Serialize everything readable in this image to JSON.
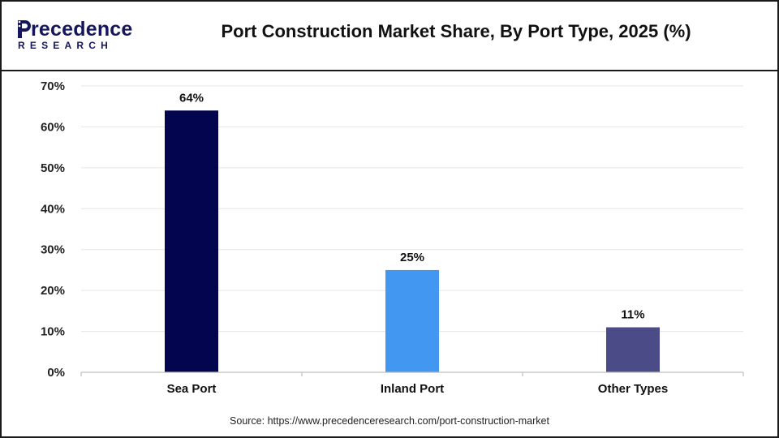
{
  "brand": {
    "logo_initial": "P",
    "logo_word": "recedence",
    "logo_sub": "RESEARCH",
    "color": "#15165c"
  },
  "chart_data": {
    "type": "bar",
    "title": "Port Construction Market Share, By Port Type, 2025 (%)",
    "categories": [
      "Sea Port",
      "Inland Port",
      "Other Types"
    ],
    "values": [
      64,
      25,
      11
    ],
    "data_labels": [
      "64%",
      "25%",
      "11%"
    ],
    "colors": [
      "#03064f",
      "#4297f1",
      "#4a4b87"
    ],
    "ylim": [
      0,
      70
    ],
    "yticks": [
      "0%",
      "10%",
      "20%",
      "30%",
      "40%",
      "50%",
      "60%",
      "70%"
    ],
    "xlabel": "",
    "ylabel": "",
    "grid": true,
    "legend": "none"
  },
  "source": "Source: https://www.precedenceresearch.com/port-construction-market"
}
